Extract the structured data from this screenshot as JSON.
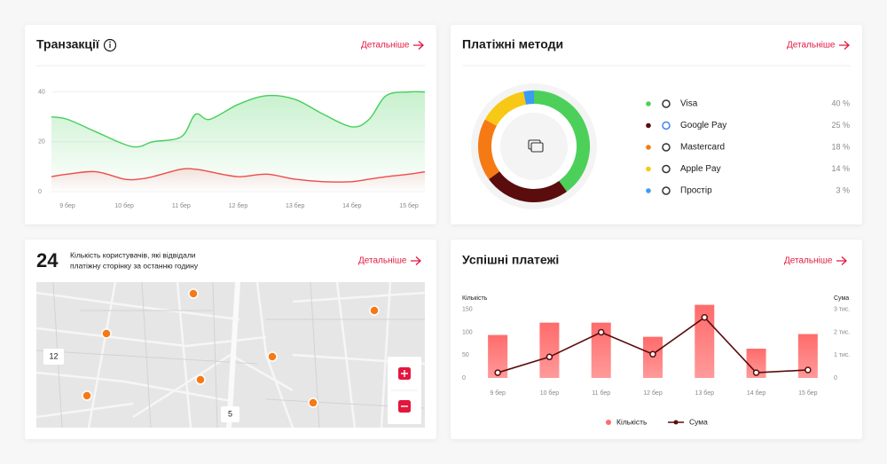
{
  "chart_data": [
    {
      "type": "line",
      "title": "Транзакції",
      "link": "Детальніше",
      "x": [
        -0.28,
        0,
        0.5,
        1,
        1.25,
        1.5,
        2,
        2.25,
        2.5,
        3,
        3.5,
        4,
        4.5,
        5,
        5.3,
        5.6,
        6,
        6.28
      ],
      "xlim": [
        -0.28,
        6.28
      ],
      "xticks": [
        {
          "value": 0,
          "label": "9 бер"
        },
        {
          "value": 1,
          "label": "10 бер"
        },
        {
          "value": 2,
          "label": "11 бер"
        },
        {
          "value": 3,
          "label": "12 бер"
        },
        {
          "value": 4,
          "label": "13 бер"
        },
        {
          "value": 5,
          "label": "14 бер"
        },
        {
          "value": 6,
          "label": "15 бер"
        }
      ],
      "ylim": [
        0,
        42
      ],
      "yticks": [
        0,
        20,
        40
      ],
      "grid": true,
      "series": [
        {
          "color": "#45cf5a",
          "values": [
            30,
            29,
            24,
            19,
            18,
            20,
            22,
            31,
            29,
            35,
            38.5,
            37,
            31,
            26,
            29,
            38.5,
            40,
            40
          ]
        },
        {
          "color": "#ef4b4b",
          "values": [
            6,
            7,
            8,
            5,
            5,
            6,
            9,
            9,
            8,
            6,
            7,
            5,
            4,
            4,
            5,
            6,
            7,
            8
          ]
        }
      ]
    },
    {
      "type": "donut",
      "title": "Платіжні методи",
      "link": "Детальніше",
      "categories": [
        "Visa",
        "Google Pay",
        "Mastercard",
        "Apple Pay",
        "Простір"
      ],
      "values": [
        40,
        25,
        18,
        14,
        3
      ],
      "value_labels": [
        "40 %",
        "25 %",
        "18 %",
        "14 %",
        "3 %"
      ],
      "colors": [
        "#4cd05a",
        "#5b0c0c",
        "#f57a14",
        "#f7c815",
        "#3b9cf2"
      ]
    },
    {
      "type": "combo",
      "title": "Успішні платежі",
      "link": "Детальніше",
      "categories": [
        "9 бер",
        "10 бер",
        "11 бер",
        "12 бер",
        "13 бер",
        "14 бер",
        "15 бер"
      ],
      "ylabel": "Кількість",
      "y2label": "Сума",
      "ylim": [
        0,
        165
      ],
      "yticks": [
        0,
        50,
        100,
        150
      ],
      "y2lim": [
        0,
        3300
      ],
      "y2ticks": [
        0,
        {
          "value": 1000,
          "label": "1 тис."
        },
        {
          "value": 2000,
          "label": "2 тис."
        },
        {
          "value": 3000,
          "label": "3 тис."
        }
      ],
      "grid": false,
      "legend": "bottom",
      "series": [
        {
          "name": "Кількість",
          "type": "bar",
          "color": "#ff6b6b",
          "values": [
            94,
            121,
            121,
            90,
            160,
            64,
            96
          ]
        },
        {
          "name": "Сума",
          "type": "line",
          "axis": "y2",
          "color": "#5b0c0c",
          "values": [
            230,
            920,
            2000,
            1040,
            2650,
            230,
            350
          ]
        }
      ]
    }
  ],
  "users_card": {
    "count": 24,
    "text": [
      "Кількість користувачів, які відвідали",
      "платіжну сторінку за останню годину"
    ],
    "link": "Детальніше",
    "clusters": [
      12,
      5
    ]
  }
}
